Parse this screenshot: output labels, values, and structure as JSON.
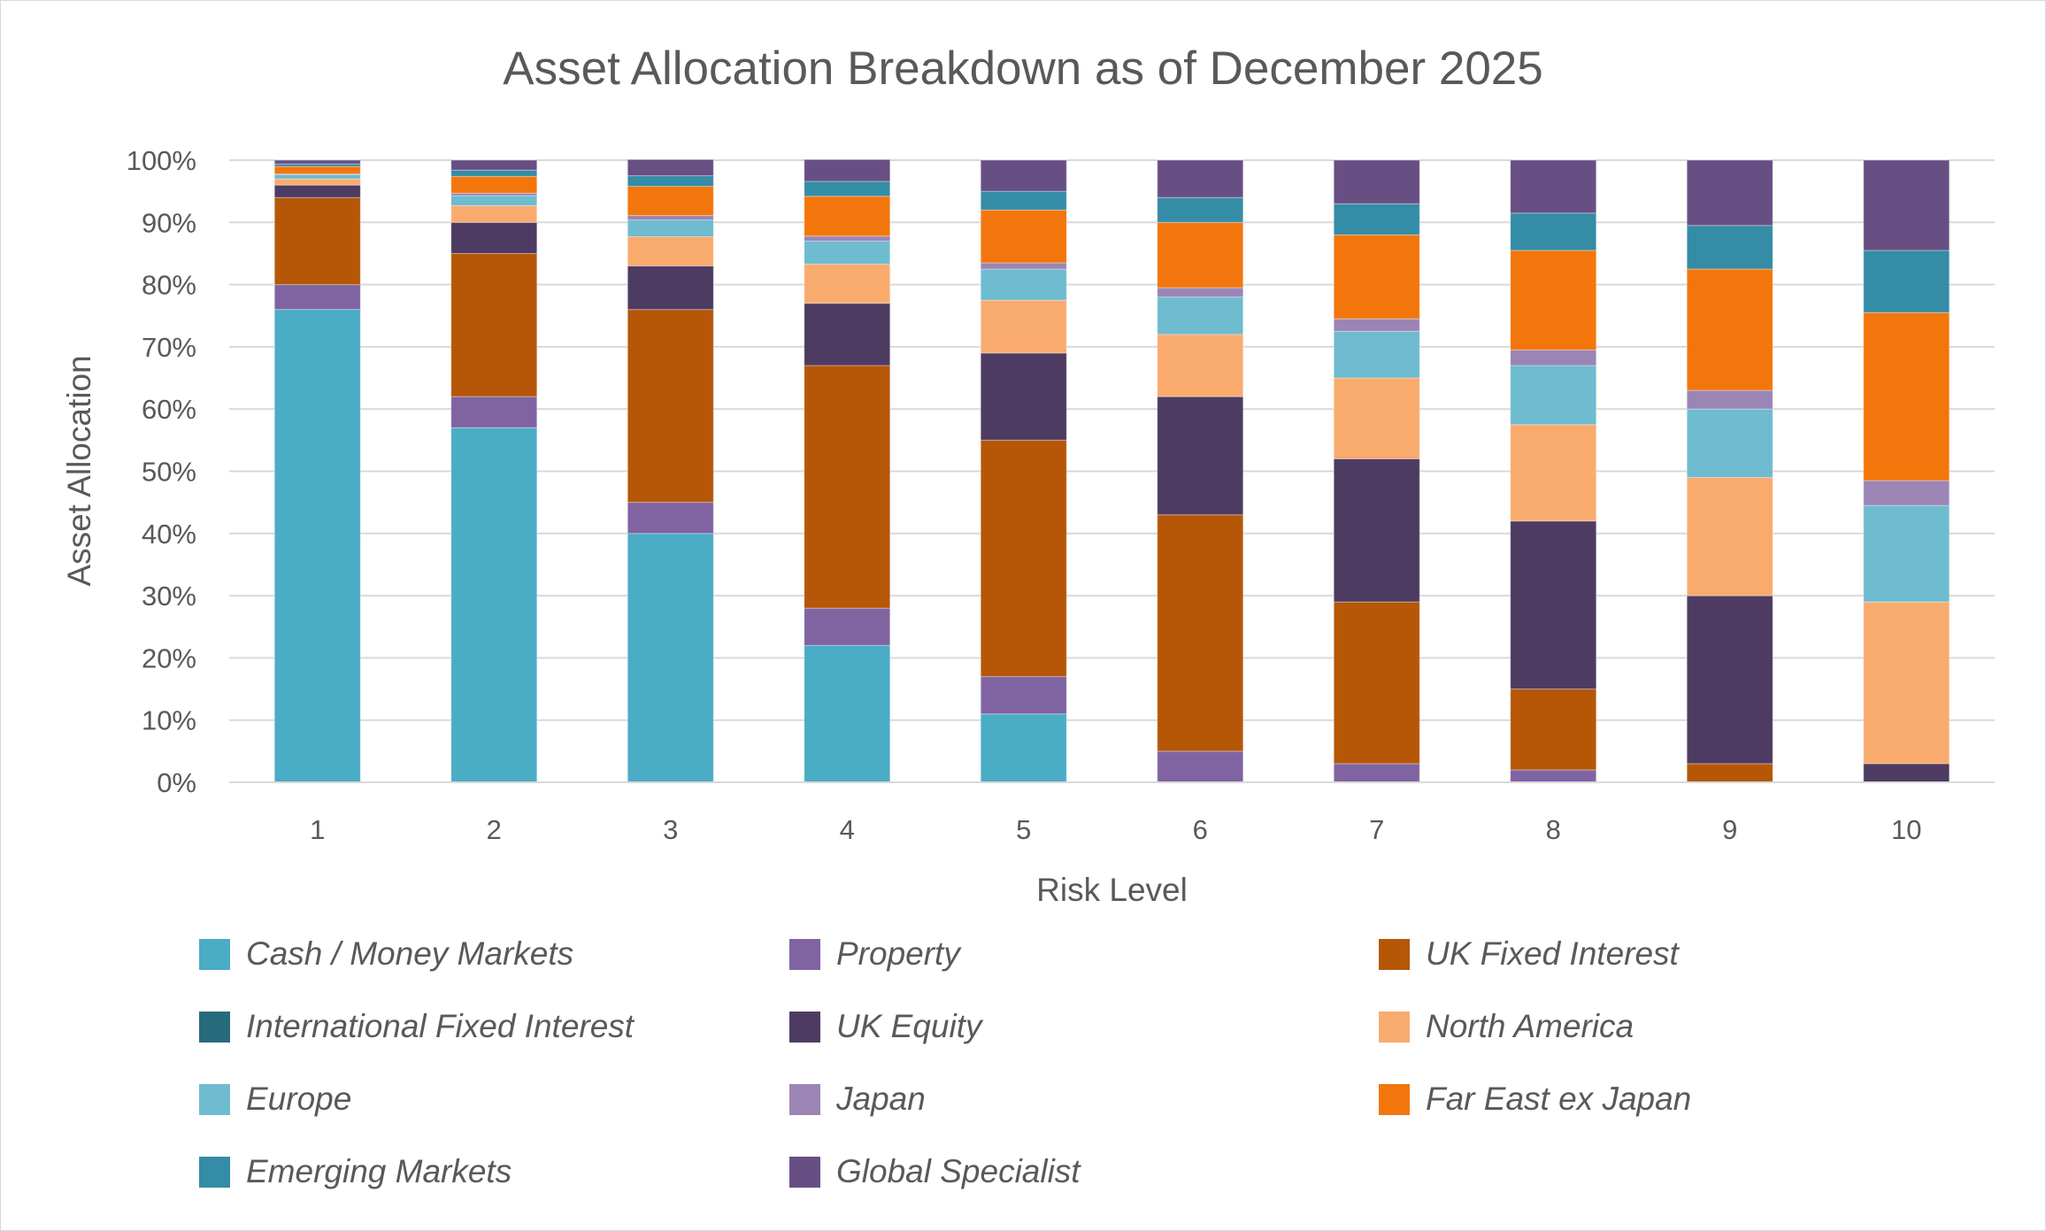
{
  "chart_data": {
    "type": "bar",
    "stacked": "percent",
    "title": "Asset Allocation Breakdown as of December 2025",
    "xlabel": "Risk Level",
    "ylabel": "Asset Allocation",
    "categories": [
      "1",
      "2",
      "3",
      "4",
      "5",
      "6",
      "7",
      "8",
      "9",
      "10"
    ],
    "yticks": [
      "0%",
      "10%",
      "20%",
      "30%",
      "40%",
      "50%",
      "60%",
      "70%",
      "80%",
      "90%",
      "100%"
    ],
    "ylim": [
      0,
      100
    ],
    "grid": true,
    "legend_position": "bottom",
    "series": [
      {
        "name": "Cash / Money Markets",
        "color": "#4BACC6",
        "values": [
          76,
          57,
          40,
          22,
          11,
          0,
          0,
          0,
          0,
          0
        ]
      },
      {
        "name": "Property",
        "color": "#8064A2",
        "values": [
          4,
          5,
          5,
          6,
          6,
          5,
          3,
          2,
          0,
          0
        ]
      },
      {
        "name": "UK Fixed Interest",
        "color": "#B65708",
        "values": [
          14,
          23,
          31,
          39,
          38,
          38,
          26,
          13,
          3,
          0
        ]
      },
      {
        "name": "International Fixed Interest",
        "color": "#276A7C",
        "values": [
          0,
          0,
          0,
          0,
          0,
          0,
          0,
          0,
          0,
          0
        ]
      },
      {
        "name": "UK Equity",
        "color": "#4E3B62",
        "values": [
          2,
          5,
          7,
          10,
          14,
          19,
          23,
          27,
          27,
          3
        ]
      },
      {
        "name": "North America",
        "color": "#F9AB6E",
        "values": [
          1,
          2.7,
          4.7,
          6.3,
          8.5,
          10,
          13,
          15.5,
          19,
          26
        ]
      },
      {
        "name": "Europe",
        "color": "#6FBBD0",
        "values": [
          0.7,
          1.6,
          2.7,
          3.7,
          5,
          6,
          7.5,
          9.5,
          11,
          15.5
        ]
      },
      {
        "name": "Japan",
        "color": "#9B85B5",
        "values": [
          0.1,
          0.4,
          0.7,
          0.8,
          1,
          1.5,
          2,
          2.5,
          3,
          4
        ]
      },
      {
        "name": "Far East ex Japan",
        "color": "#F3760C",
        "values": [
          1.2,
          2.7,
          4.7,
          6.4,
          8.5,
          10.5,
          13.5,
          16,
          19.5,
          27
        ]
      },
      {
        "name": "Emerging Markets",
        "color": "#358CA6",
        "values": [
          0.4,
          1,
          1.7,
          2.4,
          3,
          4,
          5,
          6,
          7,
          10
        ]
      },
      {
        "name": "Global Specialist",
        "color": "#674F83",
        "values": [
          0.6,
          1.6,
          2.6,
          3.5,
          5,
          6,
          7,
          8.5,
          10.5,
          14.5
        ]
      }
    ]
  }
}
